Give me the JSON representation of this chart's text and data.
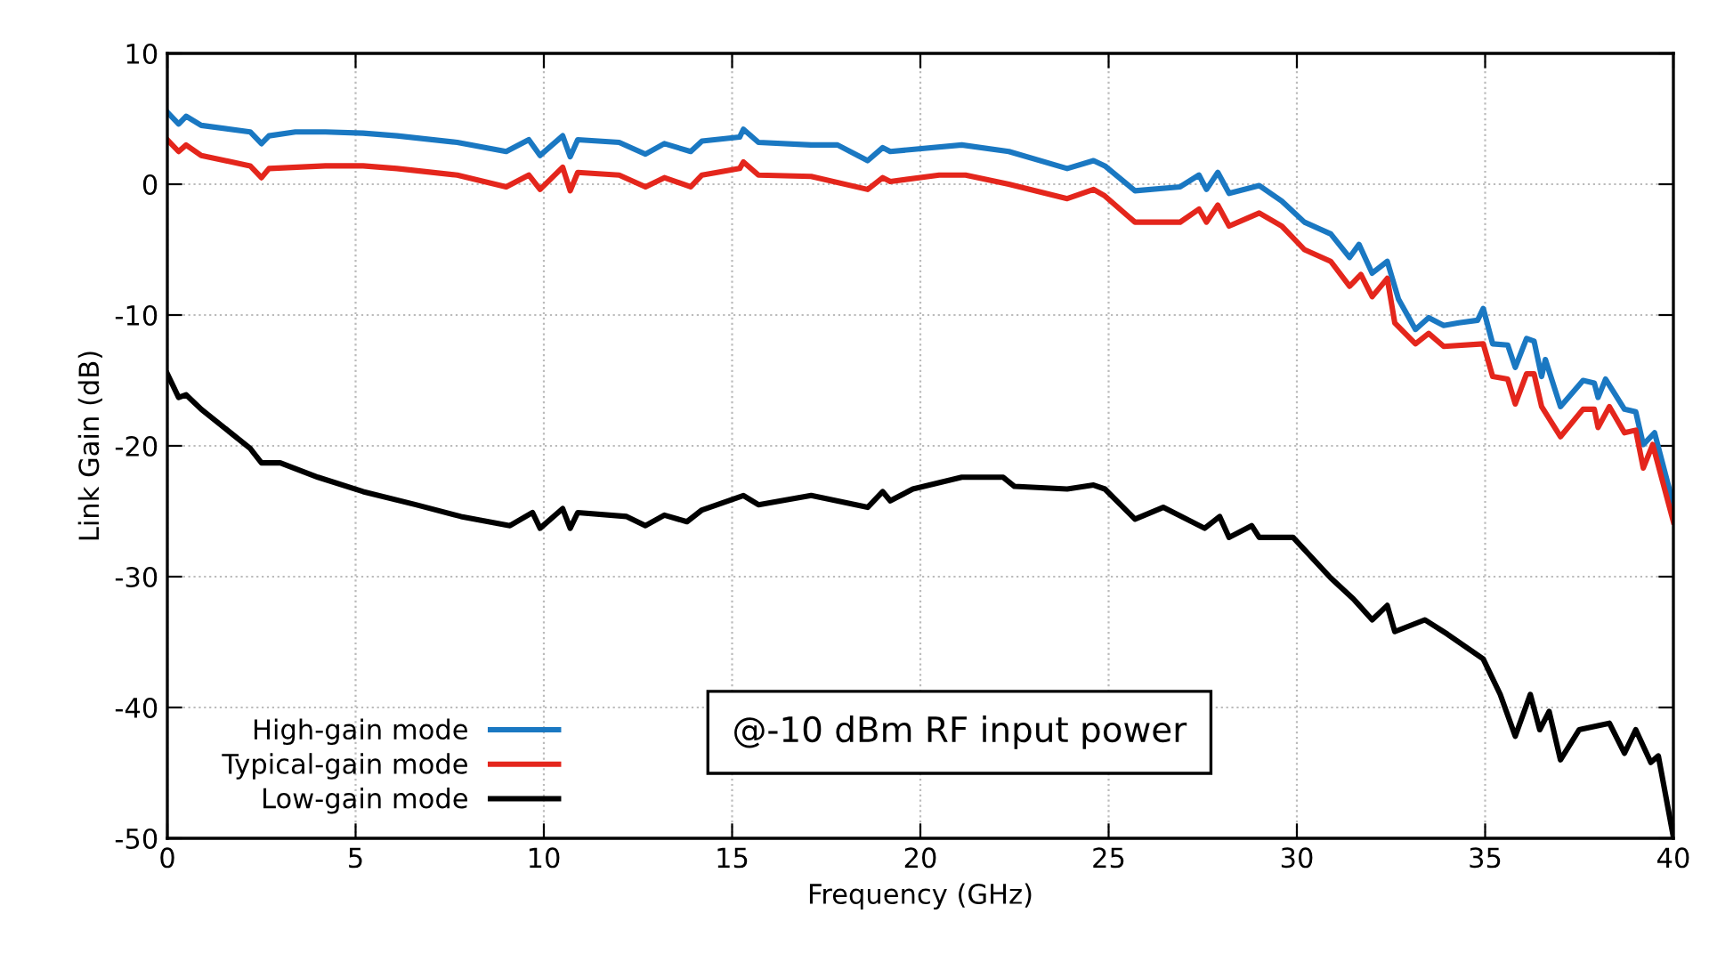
{
  "chart_data": {
    "type": "line",
    "xlabel": "Frequency (GHz)",
    "ylabel": "Link Gain (dB)",
    "xlim": [
      0,
      40
    ],
    "ylim": [
      -50,
      10
    ],
    "xticks": [
      0,
      5,
      10,
      15,
      20,
      25,
      30,
      35,
      40
    ],
    "yticks": [
      -50,
      -40,
      -30,
      -20,
      -10,
      0,
      10
    ],
    "grid": true,
    "legend": "bottom left",
    "line_style": "solid",
    "marker": "none",
    "annotations": [
      "@-10 dBm RF input power"
    ],
    "series": [
      {
        "name": "High-gain mode",
        "color": "#1a78c2",
        "x": [
          0,
          0.3,
          0.5,
          0.9,
          2.2,
          2.5,
          2.7,
          3.4,
          4.2,
          5.2,
          6.1,
          7.7,
          9.0,
          9.6,
          9.9,
          10.5,
          10.7,
          10.9,
          12.0,
          12.7,
          13.2,
          13.9,
          14.2,
          15.2,
          15.3,
          15.7,
          17.1,
          17.8,
          18.6,
          19.0,
          19.2,
          21.1,
          22.35,
          23.9,
          24.6,
          24.9,
          25.7,
          26.9,
          27.4,
          27.6,
          27.9,
          28.2,
          29.0,
          29.6,
          30.2,
          30.9,
          31.4,
          31.65,
          32.0,
          32.4,
          32.7,
          33.15,
          33.5,
          33.9,
          34.3,
          34.8,
          34.95,
          35.2,
          35.6,
          35.8,
          36.1,
          36.3,
          36.5,
          36.6,
          37.0,
          37.6,
          37.9,
          38.0,
          38.2,
          38.7,
          39.0,
          39.2,
          39.5,
          40
        ],
        "values": [
          5.5,
          4.6,
          5.2,
          4.5,
          4.0,
          3.1,
          3.7,
          4.0,
          4.0,
          3.9,
          3.7,
          3.2,
          2.5,
          3.4,
          2.2,
          3.7,
          2.1,
          3.4,
          3.2,
          2.3,
          3.1,
          2.5,
          3.3,
          3.6,
          4.2,
          3.2,
          3.0,
          3.0,
          1.8,
          2.8,
          2.5,
          3.0,
          2.5,
          1.2,
          1.8,
          1.4,
          -0.5,
          -0.2,
          0.7,
          -0.4,
          0.9,
          -0.7,
          -0.1,
          -1.3,
          -2.9,
          -3.8,
          -5.6,
          -4.6,
          -6.8,
          -5.9,
          -8.8,
          -11.1,
          -10.2,
          -10.8,
          -10.6,
          -10.4,
          -9.5,
          -12.2,
          -12.3,
          -14.0,
          -11.8,
          -12.0,
          -14.7,
          -13.4,
          -17.0,
          -15.0,
          -15.2,
          -16.3,
          -14.9,
          -17.2,
          -17.4,
          -19.9,
          -19.0,
          -24.5
        ]
      },
      {
        "name": "Typical-gain mode",
        "color": "#e4261c",
        "x": [
          0,
          0.3,
          0.5,
          0.9,
          2.2,
          2.5,
          2.7,
          4.2,
          5.2,
          6.1,
          7.7,
          9.0,
          9.6,
          9.9,
          10.5,
          10.7,
          10.9,
          12.0,
          12.7,
          13.2,
          13.9,
          14.2,
          15.2,
          15.3,
          15.7,
          17.1,
          18.6,
          19.0,
          19.2,
          20.5,
          21.2,
          22.35,
          23.9,
          24.6,
          24.9,
          25.7,
          26.9,
          27.4,
          27.6,
          27.9,
          28.2,
          29.0,
          29.6,
          30.2,
          30.9,
          31.4,
          31.7,
          32.0,
          32.4,
          32.6,
          33.15,
          33.5,
          33.9,
          34.95,
          35.2,
          35.6,
          35.8,
          36.1,
          36.3,
          36.5,
          37.0,
          37.6,
          37.9,
          38.0,
          38.3,
          38.7,
          39.0,
          39.2,
          39.45,
          40
        ],
        "values": [
          3.4,
          2.5,
          3.0,
          2.2,
          1.4,
          0.5,
          1.2,
          1.4,
          1.4,
          1.2,
          0.7,
          -0.2,
          0.7,
          -0.4,
          1.3,
          -0.5,
          0.9,
          0.7,
          -0.2,
          0.5,
          -0.2,
          0.7,
          1.2,
          1.7,
          0.7,
          0.6,
          -0.4,
          0.5,
          0.2,
          0.7,
          0.7,
          0.0,
          -1.1,
          -0.4,
          -0.9,
          -2.9,
          -2.9,
          -1.9,
          -2.9,
          -1.6,
          -3.2,
          -2.2,
          -3.2,
          -5.0,
          -5.9,
          -7.8,
          -6.9,
          -8.6,
          -7.2,
          -10.6,
          -12.2,
          -11.4,
          -12.4,
          -12.2,
          -14.7,
          -14.9,
          -16.8,
          -14.5,
          -14.5,
          -17.0,
          -19.3,
          -17.2,
          -17.2,
          -18.6,
          -17.0,
          -19.0,
          -18.8,
          -21.7,
          -19.9,
          -25.8
        ]
      },
      {
        "name": "Low-gain mode",
        "color": "#000000",
        "x": [
          0,
          0.3,
          0.5,
          0.9,
          2.2,
          2.5,
          3.0,
          4.0,
          5.2,
          6.6,
          7.8,
          9.1,
          9.7,
          9.9,
          10.5,
          10.7,
          10.9,
          12.2,
          12.7,
          13.2,
          13.8,
          14.2,
          15.3,
          15.7,
          17.1,
          18.6,
          19.0,
          19.2,
          19.8,
          21.1,
          22.2,
          22.5,
          23.9,
          24.6,
          24.9,
          25.7,
          26.45,
          27.55,
          27.95,
          28.2,
          28.8,
          29.0,
          29.9,
          30.9,
          31.5,
          32.0,
          32.4,
          32.6,
          33.4,
          34.0,
          34.95,
          35.4,
          35.8,
          36.2,
          36.45,
          36.7,
          37.0,
          37.5,
          38.3,
          38.7,
          39.0,
          39.4,
          39.6,
          40
        ],
        "values": [
          -14.5,
          -16.3,
          -16.1,
          -17.2,
          -20.2,
          -21.3,
          -21.3,
          -22.4,
          -23.5,
          -24.5,
          -25.4,
          -26.1,
          -25.1,
          -26.3,
          -24.8,
          -26.3,
          -25.1,
          -25.4,
          -26.1,
          -25.3,
          -25.8,
          -24.9,
          -23.8,
          -24.5,
          -23.8,
          -24.7,
          -23.5,
          -24.2,
          -23.3,
          -22.4,
          -22.4,
          -23.1,
          -23.3,
          -23.0,
          -23.3,
          -25.6,
          -24.7,
          -26.3,
          -25.4,
          -27.0,
          -26.1,
          -27.0,
          -27.0,
          -30.1,
          -31.7,
          -33.3,
          -32.2,
          -34.2,
          -33.3,
          -34.4,
          -36.3,
          -39.0,
          -42.2,
          -39.0,
          -41.7,
          -40.3,
          -44.0,
          -41.7,
          -41.2,
          -43.5,
          -41.7,
          -44.2,
          -43.7,
          -49.9
        ]
      }
    ]
  }
}
